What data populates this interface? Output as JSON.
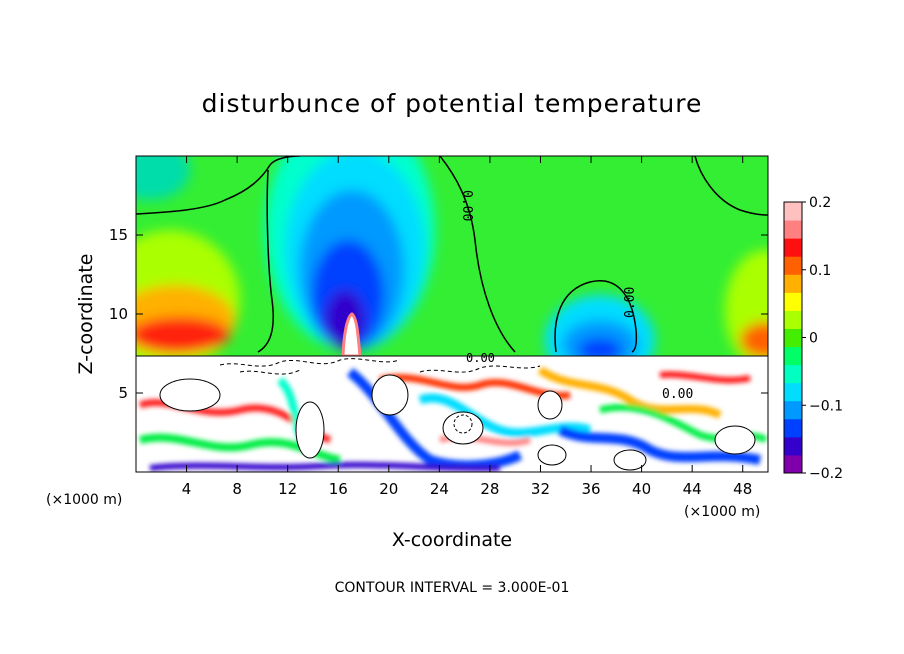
{
  "chart_data": {
    "type": "heatmap",
    "title": "disturbunce of potential temperature",
    "xlabel": "X-coordinate",
    "ylabel": "Z-coordinate",
    "x_unit_left": "(×1000 m)",
    "x_unit_right": "(×1000 m)",
    "xlim": [
      0,
      50
    ],
    "ylim": [
      0,
      20
    ],
    "x_ticks": [
      4,
      8,
      12,
      16,
      20,
      24,
      28,
      32,
      36,
      40,
      44,
      48
    ],
    "y_ticks": [
      5,
      10,
      15
    ],
    "colorbar": {
      "min": -0.2,
      "max": 0.2,
      "ticks": [
        0.2,
        0.1,
        0,
        -0.1,
        -0.2
      ],
      "tick_labels": [
        "0.2",
        "0.1",
        "0",
        "−0.1",
        "−0.2"
      ],
      "colors": [
        "#7f00aa",
        "#3300cc",
        "#0040ff",
        "#0099ff",
        "#00ddff",
        "#00ffc0",
        "#00ff66",
        "#44ee00",
        "#aaff00",
        "#ffff00",
        "#ffb000",
        "#ff6000",
        "#ff1010",
        "#ff8080",
        "#ffc0c0"
      ]
    },
    "contour_labels": [
      "0.00",
      "0.00",
      "0.00",
      "0.00"
    ],
    "contour_interval_text": "CONTOUR INTERVAL = 3.000E-01",
    "features": [
      {
        "kind": "cold-plume",
        "x": 17,
        "z_top": 17,
        "value": -0.18
      },
      {
        "kind": "cold-dome",
        "x": 37,
        "z_top": 12,
        "value": -0.15
      },
      {
        "kind": "warm-region",
        "x": 3,
        "z": 10,
        "value": 0.15
      },
      {
        "kind": "warm-spike",
        "x": 17.5,
        "z": 9,
        "value": 0.2
      },
      {
        "kind": "boundary-layer",
        "z_top": 7.3
      }
    ]
  }
}
